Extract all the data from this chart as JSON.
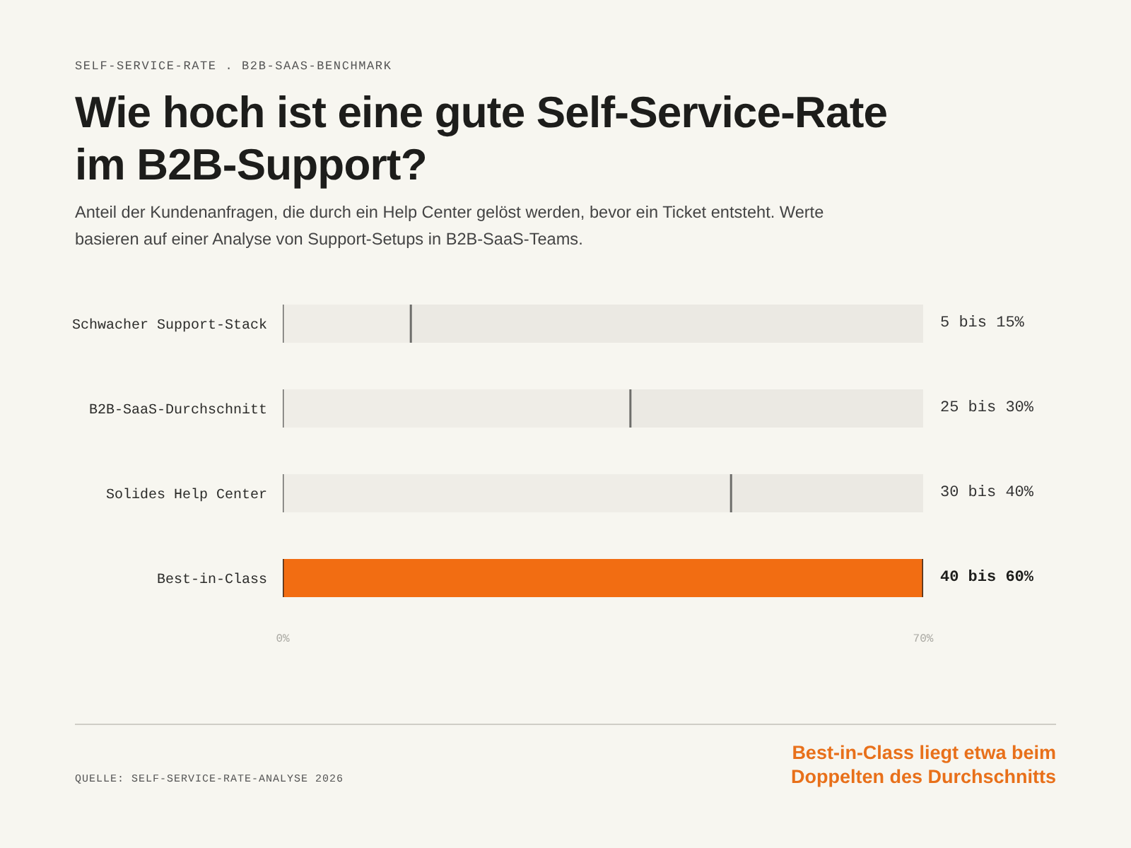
{
  "chart_data": {
    "type": "bar",
    "orientation": "horizontal",
    "stacked": true,
    "title": "Wie hoch ist eine gute Self-Service-Rate im B2B-Support?",
    "subtitle": "Anteil der Kundenanfragen, die durch ein Help Center gelöst werden, bevor ein Ticket entsteht. Werte basieren auf einer Analyse von Support-Setups in B2B-SaaS-Teams.",
    "categories": [
      "Schwacher Support-Stack",
      "B2B-SaaS-Durchschnitt",
      "Solides Help Center",
      "Best-in-Class"
    ],
    "series": [
      {
        "colors": [
          "#efede7",
          "#efede7",
          "#efede7",
          "#f26d12"
        ],
        "values": [
          14,
          38,
          49,
          70
        ]
      },
      {
        "color": "#ebe9e3",
        "values": [
          56,
          32,
          21,
          0
        ]
      }
    ],
    "xlim": [
      0,
      70
    ],
    "xticks": [
      {
        "value": 0,
        "label": "0%"
      },
      {
        "value": 70,
        "label": "70%"
      }
    ],
    "annotations": [
      "SELF-SERVICE-RATE . B2B-SAAS-BENCHMARK",
      "5 bis 15%",
      "25 bis 30%",
      "30 bis 40%",
      "40 bis 60%",
      "QUELLE: SELF-SERVICE-RATE-ANALYSE 2026",
      "Best-in-Class liegt etwa beim Doppelten des Durchschnitts"
    ]
  }
}
